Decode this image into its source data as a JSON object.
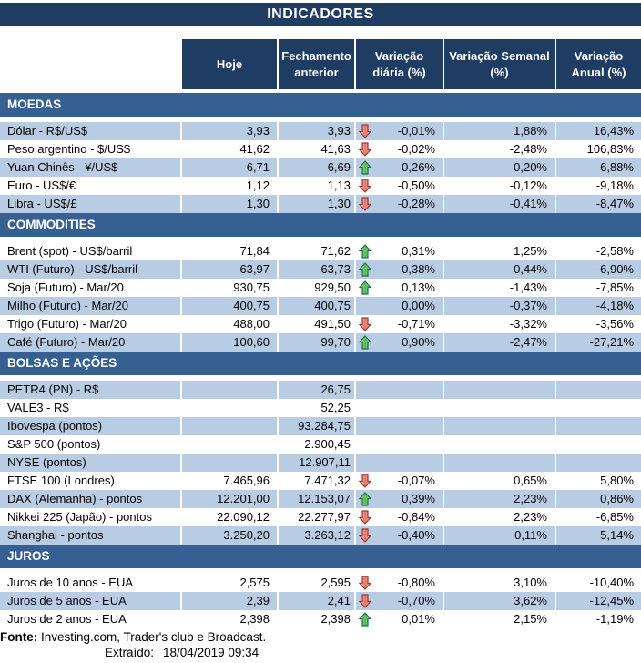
{
  "title": "INDICADORES",
  "chart_data": {
    "type": "table",
    "title": "INDICADORES",
    "columns": [
      "Hoje",
      "Fechamento anterior",
      "Variação diária (%)",
      "Variação Semanal (%)",
      "Variação Anual (%)"
    ],
    "sections": [
      {
        "name": "MOEDAS",
        "rows": [
          {
            "label": "Dólar - R$/US$",
            "hoje": "3,93",
            "fechamento": "3,93",
            "arrow": "down",
            "var_diaria": "-0,01%",
            "var_semanal": "1,88%",
            "var_anual": "16,43%"
          },
          {
            "label": "Peso argentino - $/US$",
            "hoje": "41,62",
            "fechamento": "41,63",
            "arrow": "down",
            "var_diaria": "-0,02%",
            "var_semanal": "-2,48%",
            "var_anual": "106,83%"
          },
          {
            "label": "Yuan Chinês - ¥/US$",
            "hoje": "6,71",
            "fechamento": "6,69",
            "arrow": "up",
            "var_diaria": "0,26%",
            "var_semanal": "-0,20%",
            "var_anual": "6,88%"
          },
          {
            "label": "Euro - US$/€",
            "hoje": "1,12",
            "fechamento": "1,13",
            "arrow": "down",
            "var_diaria": "-0,50%",
            "var_semanal": "-0,12%",
            "var_anual": "-9,18%"
          },
          {
            "label": "Libra - US$/£",
            "hoje": "1,30",
            "fechamento": "1,30",
            "arrow": "down",
            "var_diaria": "-0,28%",
            "var_semanal": "-0,41%",
            "var_anual": "-8,47%"
          }
        ]
      },
      {
        "name": "COMMODITIES",
        "rows": [
          {
            "label": "Brent (spot) - US$/barril",
            "hoje": "71,84",
            "fechamento": "71,62",
            "arrow": "up",
            "var_diaria": "0,31%",
            "var_semanal": "1,25%",
            "var_anual": "-2,58%"
          },
          {
            "label": "WTI (Futuro) - US$/barril",
            "hoje": "63,97",
            "fechamento": "63,73",
            "arrow": "up",
            "var_diaria": "0,38%",
            "var_semanal": "0,44%",
            "var_anual": "-6,90%"
          },
          {
            "label": "Soja (Futuro) - Mar/20",
            "hoje": "930,75",
            "fechamento": "929,50",
            "arrow": "up",
            "var_diaria": "0,13%",
            "var_semanal": "-1,43%",
            "var_anual": "-7,85%"
          },
          {
            "label": "Milho (Futuro) - Mar/20",
            "hoje": "400,75",
            "fechamento": "400,75",
            "arrow": "",
            "var_diaria": "0,00%",
            "var_semanal": "-0,37%",
            "var_anual": "-4,18%"
          },
          {
            "label": "Trigo (Futuro) - Mar/20",
            "hoje": "488,00",
            "fechamento": "491,50",
            "arrow": "down",
            "var_diaria": "-0,71%",
            "var_semanal": "-3,32%",
            "var_anual": "-3,56%"
          },
          {
            "label": "Café (Futuro) - Mar/20",
            "hoje": "100,60",
            "fechamento": "99,70",
            "arrow": "up",
            "var_diaria": "0,90%",
            "var_semanal": "-2,47%",
            "var_anual": "-27,21%"
          }
        ]
      },
      {
        "name": "BOLSAS E AÇÕES",
        "rows": [
          {
            "label": "PETR4 (PN) - R$",
            "hoje": "",
            "fechamento": "26,75",
            "arrow": "",
            "var_diaria": "",
            "var_semanal": "",
            "var_anual": ""
          },
          {
            "label": "VALE3 - R$",
            "hoje": "",
            "fechamento": "52,25",
            "arrow": "",
            "var_diaria": "",
            "var_semanal": "",
            "var_anual": ""
          },
          {
            "label": "Ibovespa (pontos)",
            "hoje": "",
            "fechamento": "93.284,75",
            "arrow": "",
            "var_diaria": "",
            "var_semanal": "",
            "var_anual": ""
          },
          {
            "label": "S&P 500 (pontos)",
            "hoje": "",
            "fechamento": "2.900,45",
            "arrow": "",
            "var_diaria": "",
            "var_semanal": "",
            "var_anual": ""
          },
          {
            "label": "NYSE (pontos)",
            "hoje": "",
            "fechamento": "12.907,11",
            "arrow": "",
            "var_diaria": "",
            "var_semanal": "",
            "var_anual": ""
          },
          {
            "label": "FTSE 100 (Londres)",
            "hoje": "7.465,96",
            "fechamento": "7.471,32",
            "arrow": "down",
            "var_diaria": "-0,07%",
            "var_semanal": "0,65%",
            "var_anual": "5,80%"
          },
          {
            "label": "DAX (Alemanha) - pontos",
            "hoje": "12.201,00",
            "fechamento": "12.153,07",
            "arrow": "up",
            "var_diaria": "0,39%",
            "var_semanal": "2,23%",
            "var_anual": "0,86%"
          },
          {
            "label": "Nikkei 225 (Japão) - pontos",
            "hoje": "22.090,12",
            "fechamento": "22.277,97",
            "arrow": "down",
            "var_diaria": "-0,84%",
            "var_semanal": "2,23%",
            "var_anual": "-6,85%"
          },
          {
            "label": "Shanghai - pontos",
            "hoje": "3.250,20",
            "fechamento": "3.263,12",
            "arrow": "down",
            "var_diaria": "-0,40%",
            "var_semanal": "0,11%",
            "var_anual": "5,14%"
          }
        ]
      },
      {
        "name": "JUROS",
        "rows": [
          {
            "label": "Juros de 10 anos - EUA",
            "hoje": "2,575",
            "fechamento": "2,595",
            "arrow": "down",
            "var_diaria": "-0,80%",
            "var_semanal": "3,10%",
            "var_anual": "-10,40%"
          },
          {
            "label": "Juros de 5 anos - EUA",
            "hoje": "2,39",
            "fechamento": "2,41",
            "arrow": "down",
            "var_diaria": "-0,70%",
            "var_semanal": "3,62%",
            "var_anual": "-12,45%"
          },
          {
            "label": "Juros de 2 anos - EUA",
            "hoje": "2,398",
            "fechamento": "2,398",
            "arrow": "up",
            "var_diaria": "0,01%",
            "var_semanal": "2,15%",
            "var_anual": "-1,19%"
          }
        ]
      }
    ]
  },
  "footer": {
    "fonte_label": "Fonte:",
    "fonte_text": " Investing.com, Trader's club e Broadcast.",
    "extraido_label": "Extraído:",
    "extraido_value": "18/04/2019 09:34"
  },
  "icons": {
    "up": "up-arrow-icon",
    "down": "down-arrow-icon"
  },
  "colors": {
    "header_navy": "#1F3D63",
    "section_blue": "#376092",
    "stripe_blue": "#B8CCE4",
    "arrow_up_green": "#57B857",
    "arrow_up_border": "#1E7145",
    "arrow_down_red": "#E2766B",
    "arrow_down_border": "#9C3A31",
    "text": "#000000",
    "header_text": "#FFFFFF"
  }
}
